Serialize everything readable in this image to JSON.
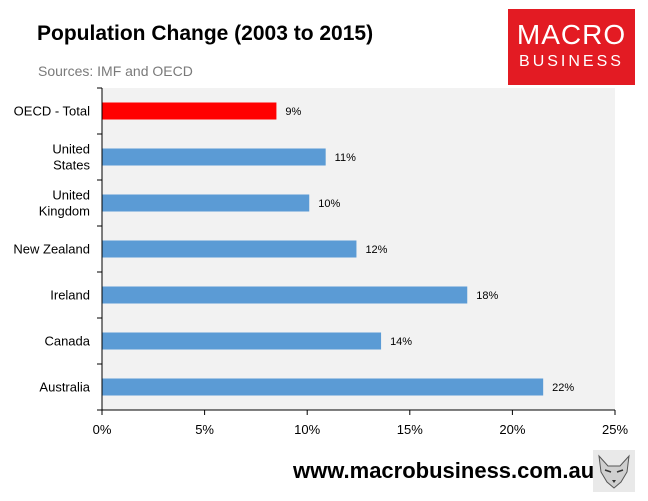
{
  "header": {
    "title": "Population Change (2003 to 2015)",
    "subtitle": "Sources: IMF and OECD"
  },
  "logo": {
    "line1": "MACRO",
    "line2": "BUSINESS"
  },
  "footer": {
    "url": "www.macrobusiness.com.au"
  },
  "colors": {
    "highlight": "#ff0000",
    "bar": "#5b9bd5",
    "plot_bg": "#f2f2f2",
    "logo_bg": "#e31b23"
  },
  "chart_data": {
    "type": "bar",
    "orientation": "horizontal",
    "title": "Population Change (2003 to 2015)",
    "categories": [
      [
        "OECD - Total"
      ],
      [
        "United",
        "States"
      ],
      [
        "United",
        "Kingdom"
      ],
      [
        "New Zealand"
      ],
      [
        "Ireland"
      ],
      [
        "Canada"
      ],
      [
        "Australia"
      ]
    ],
    "values": [
      8.5,
      10.9,
      10.1,
      12.4,
      17.8,
      13.6,
      21.5
    ],
    "data_labels": [
      "9%",
      "11%",
      "10%",
      "12%",
      "18%",
      "14%",
      "22%"
    ],
    "highlight_index": 0,
    "xlim": [
      0,
      25
    ],
    "xticks": [
      0,
      5,
      10,
      15,
      20,
      25
    ],
    "xtick_labels": [
      "0%",
      "5%",
      "10%",
      "15%",
      "20%",
      "25%"
    ],
    "grid": false,
    "legend": "none"
  }
}
